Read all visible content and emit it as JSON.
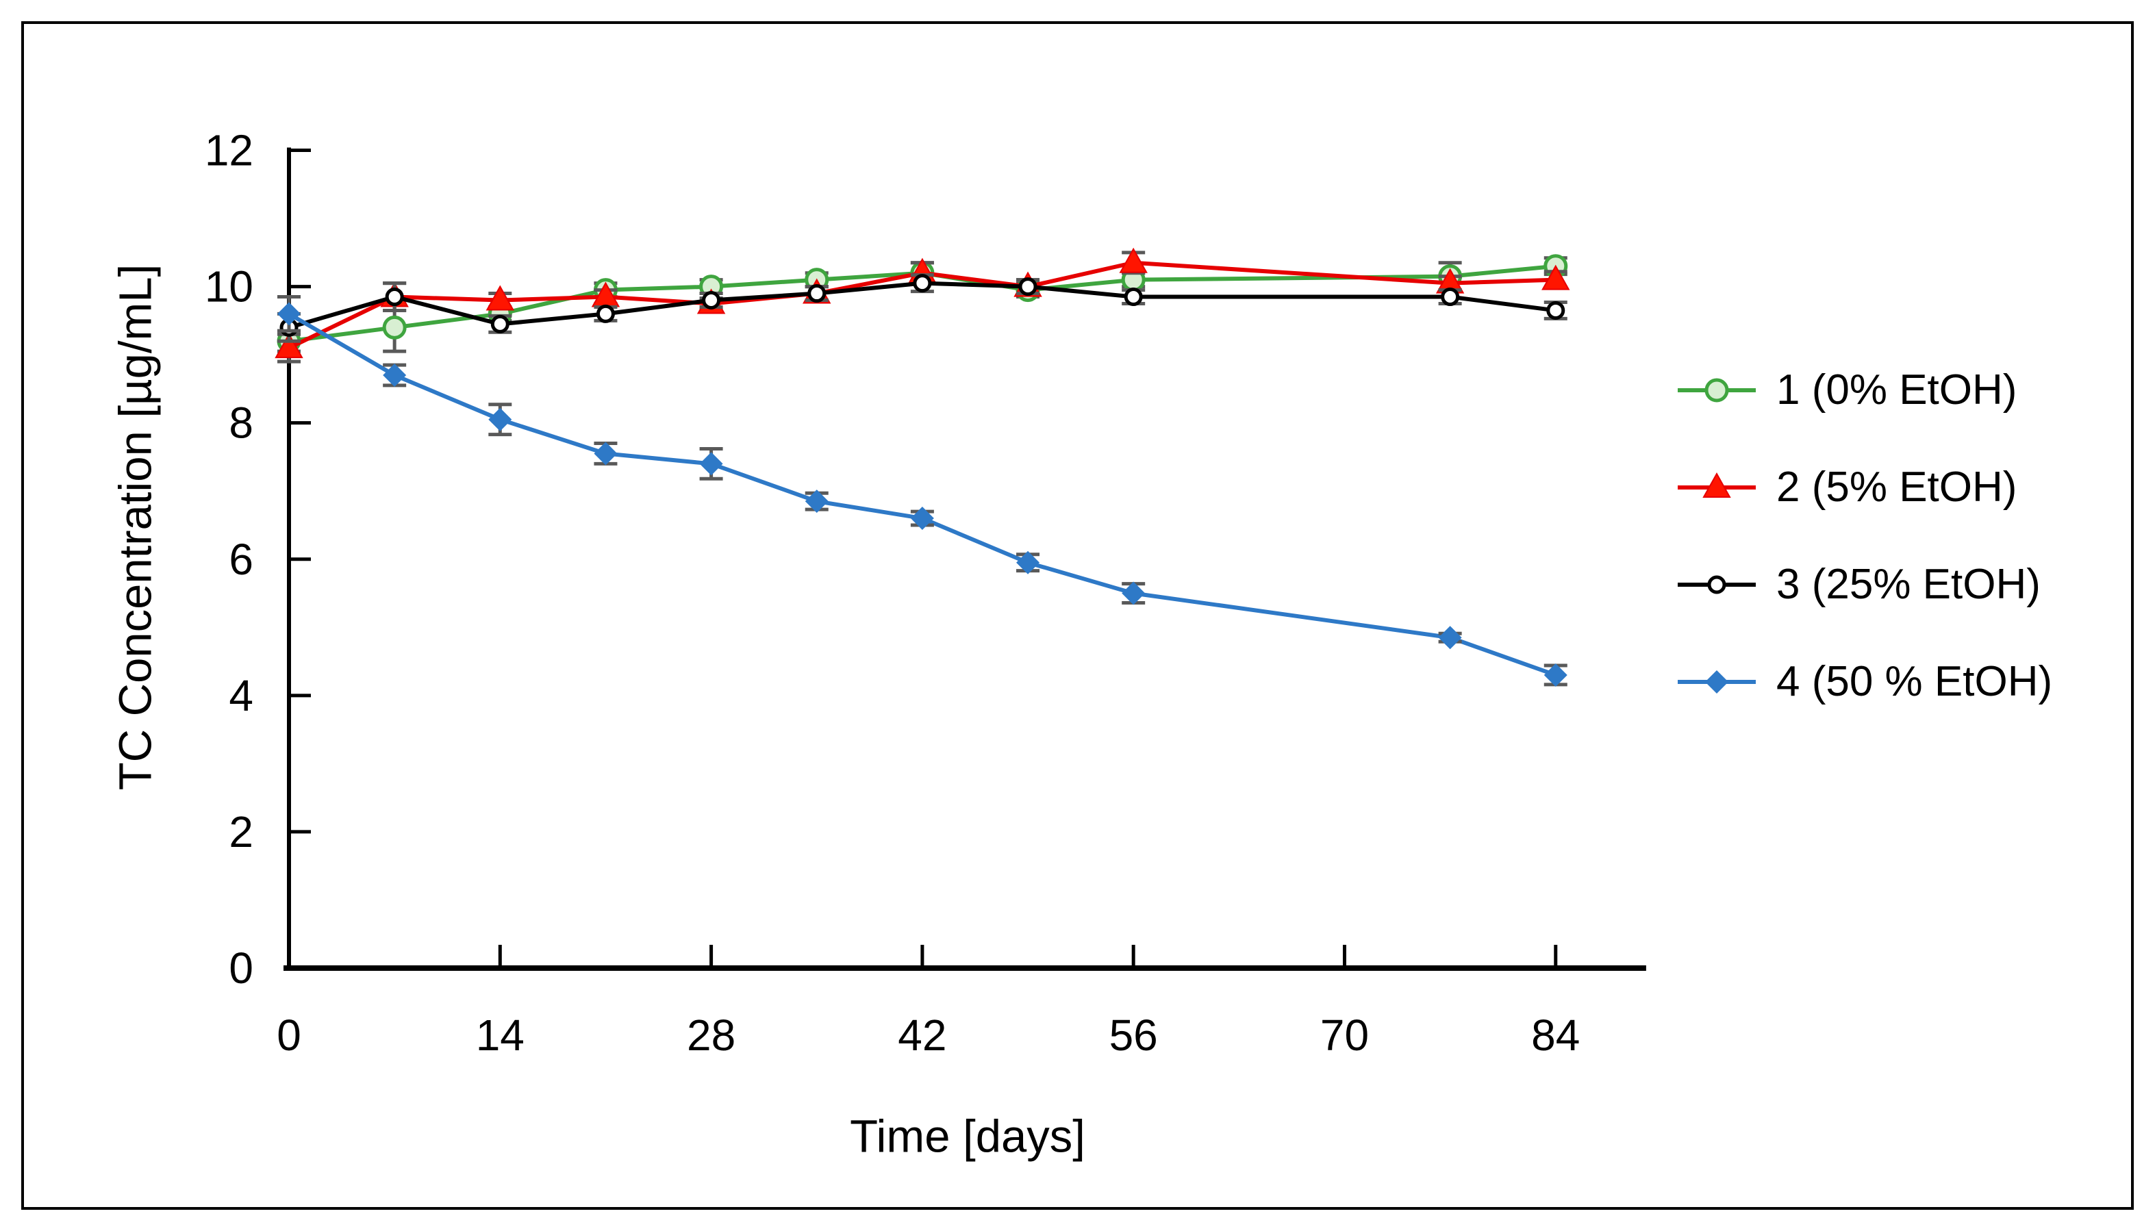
{
  "figure": {
    "background": "#FFFFFF",
    "border_color": "#000000"
  },
  "chart_data": {
    "type": "line",
    "title": "",
    "xlabel": "Time [days]",
    "ylabel": "TC Concentration [µg/mL]",
    "x": [
      0,
      7,
      14,
      21,
      28,
      35,
      42,
      49,
      56,
      77,
      84
    ],
    "x_ticks": [
      0,
      14,
      28,
      42,
      56,
      70,
      84
    ],
    "y_ticks": [
      0,
      2,
      4,
      6,
      8,
      10,
      12
    ],
    "xlim": [
      0,
      90
    ],
    "ylim": [
      0,
      12
    ],
    "grid": false,
    "legend_position": "right-center",
    "error_bar_color": "#595959",
    "series": [
      {
        "name": "1 (0% EtOH)",
        "color": "#3FA53F",
        "marker": "circle-open",
        "marker_fill": "#D8EFD2",
        "marker_size": 15,
        "values": [
          9.2,
          9.4,
          9.6,
          9.95,
          10.0,
          10.1,
          10.2,
          9.95,
          10.1,
          10.15,
          10.3
        ],
        "errors": [
          0.15,
          0.35,
          0.1,
          0.1,
          0.1,
          0.1,
          0.15,
          0.1,
          0.1,
          0.2,
          0.12
        ]
      },
      {
        "name": "2 (5% EtOH)",
        "color": "#E60000",
        "marker": "triangle-filled",
        "marker_fill": "#FF1500",
        "marker_size": 20,
        "values": [
          9.1,
          9.85,
          9.8,
          9.85,
          9.75,
          9.9,
          10.2,
          10.0,
          10.35,
          10.05,
          10.1
        ],
        "errors": [
          0.2,
          0.2,
          0.1,
          0.1,
          0.08,
          0.1,
          0.15,
          0.1,
          0.15,
          0.1,
          0.12
        ]
      },
      {
        "name": "3 (25% EtOH)",
        "color": "#000000",
        "marker": "circle-open",
        "marker_fill": "#FFFFFF",
        "marker_size": 11,
        "values": [
          9.4,
          9.85,
          9.45,
          9.6,
          9.8,
          9.9,
          10.05,
          10.0,
          9.85,
          9.85,
          9.65
        ],
        "errors": [
          0.2,
          0.2,
          0.12,
          0.1,
          0.1,
          0.1,
          0.12,
          0.1,
          0.1,
          0.1,
          0.12
        ]
      },
      {
        "name": "4 (50 % EtOH)",
        "color": "#2E79C7",
        "marker": "diamond-filled",
        "marker_fill": "#2E79C7",
        "marker_size": 17,
        "values": [
          9.6,
          8.7,
          8.05,
          7.55,
          7.4,
          6.85,
          6.6,
          5.95,
          5.5,
          4.85,
          4.3
        ],
        "errors": [
          0.25,
          0.15,
          0.22,
          0.15,
          0.22,
          0.12,
          0.1,
          0.12,
          0.14,
          0.06,
          0.14
        ]
      }
    ]
  }
}
